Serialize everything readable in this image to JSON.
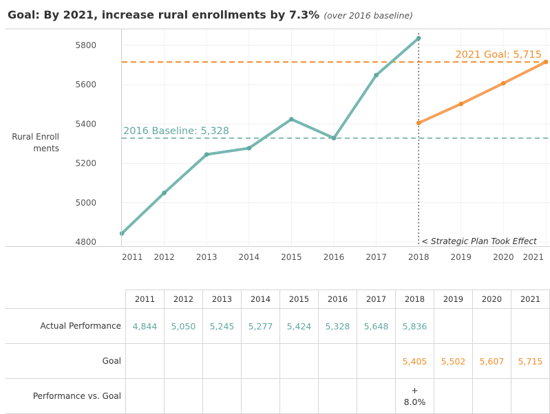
{
  "title": "Goal: By 2021, increase rural enrollments by 7.3%",
  "subtitle": "(over 2016 baseline)",
  "colors": {
    "actual": "#76b7b2",
    "goal": "#f5a15a",
    "baseline": "#5fa8a0",
    "goal_line": "#f28e2b",
    "text": "#333333"
  },
  "chart_data": {
    "type": "line",
    "title": "Goal: By 2021, increase rural enrollments by 7.3%",
    "ylabel": "Rural Enroll ments",
    "ylim": [
      4800,
      5900
    ],
    "yticks": [
      "4800",
      "5000",
      "5200",
      "5400",
      "5600",
      "5800"
    ],
    "xticks": [
      "2011",
      "2012",
      "2013",
      "2014",
      "2015",
      "2016",
      "2017",
      "2018",
      "2019",
      "2020",
      "2021"
    ],
    "series": [
      {
        "name": "Actual Performance",
        "x": [
          2011,
          2012,
          2013,
          2014,
          2015,
          2016,
          2017,
          2018
        ],
        "values": [
          4844,
          5050,
          5245,
          5277,
          5424,
          5328,
          5648,
          5836
        ]
      },
      {
        "name": "Goal",
        "x": [
          2018,
          2019,
          2020,
          2021
        ],
        "values": [
          5405,
          5502,
          5607,
          5715
        ]
      }
    ],
    "reference_lines": [
      {
        "label": "2016 Baseline: 5,328",
        "value": 5328
      },
      {
        "label": "2021 Goal: 5,715",
        "value": 5715
      }
    ],
    "vertical_marker": {
      "x": 2018,
      "label": "< Strategic Plan Took Effect"
    }
  },
  "table": {
    "years": [
      "2011",
      "2012",
      "2013",
      "2014",
      "2015",
      "2016",
      "2017",
      "2018",
      "2019",
      "2020",
      "2021"
    ],
    "rows": [
      {
        "label": "Actual Performance",
        "color": "teal",
        "cells": [
          "4,844",
          "5,050",
          "5,245",
          "5,277",
          "5,424",
          "5,328",
          "5,648",
          "5,836",
          "",
          "",
          ""
        ]
      },
      {
        "label": "Goal",
        "color": "orange",
        "cells": [
          "",
          "",
          "",
          "",
          "",
          "",
          "",
          "5,405",
          "5,502",
          "5,607",
          "5,715"
        ]
      },
      {
        "label": "Performance vs. Goal",
        "color": "dark",
        "cells": [
          "",
          "",
          "",
          "",
          "",
          "",
          "",
          "+\n8.0%",
          "",
          "",
          ""
        ]
      }
    ]
  }
}
